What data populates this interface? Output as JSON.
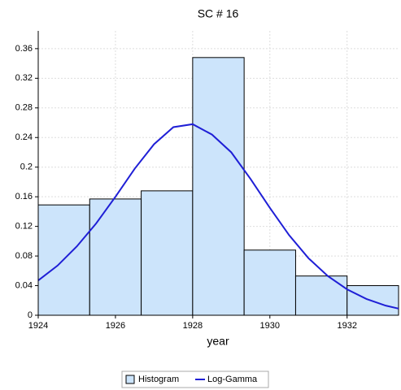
{
  "chart_data": {
    "type": "histogram",
    "title": "SC # 16",
    "x_label": "year",
    "bins": [
      1924,
      1925.333,
      1926.667,
      1928,
      1929.333,
      1930.667,
      1932,
      1933.333
    ],
    "series": [
      {
        "name": "Histogram",
        "type": "histogram",
        "color": "#cce4fb",
        "values": [
          0.149,
          0.157,
          0.168,
          0.348,
          0.088,
          0.053,
          0.04
        ]
      },
      {
        "name": "Log-Gamma",
        "type": "line",
        "color": "#1f1fd6",
        "x": [
          1924,
          1924.5,
          1925,
          1925.5,
          1926,
          1926.5,
          1927,
          1927.5,
          1928,
          1928.5,
          1929,
          1929.5,
          1930,
          1930.5,
          1931,
          1931.5,
          1932,
          1932.5,
          1933,
          1933.333
        ],
        "values": [
          0.047,
          0.067,
          0.093,
          0.124,
          0.16,
          0.198,
          0.231,
          0.254,
          0.258,
          0.244,
          0.22,
          0.184,
          0.145,
          0.108,
          0.077,
          0.053,
          0.035,
          0.022,
          0.013,
          0.009
        ]
      }
    ],
    "xlim": [
      1924,
      1933.333
    ],
    "ylim": [
      0,
      0.384
    ],
    "xticks": [
      1924,
      1926,
      1928,
      1930,
      1932
    ],
    "yticks": [
      0,
      0.04,
      0.08,
      0.12,
      0.16,
      0.2,
      0.24,
      0.28,
      0.32,
      0.36
    ],
    "grid": true,
    "legend": "bottom"
  }
}
